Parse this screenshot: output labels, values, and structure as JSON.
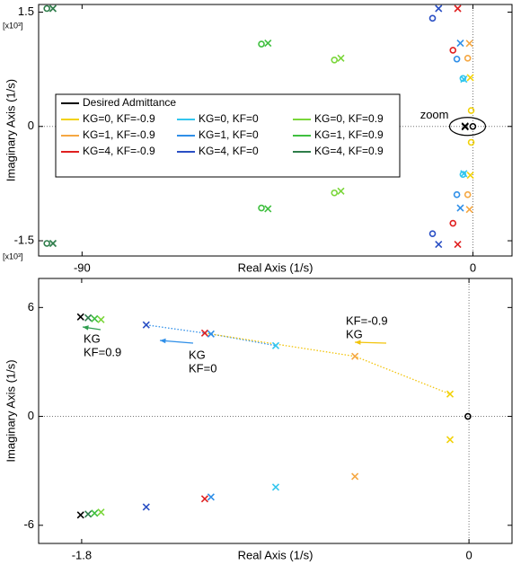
{
  "chart_data": [
    {
      "type": "scatter",
      "x_label": "Real Axis (1/s)",
      "y_label": "Imaginary Axis (1/s)",
      "y_exponent": "[x10³]",
      "annotation": "zoom",
      "xlim": [
        -100,
        9
      ],
      "ylim": [
        -1700,
        1600
      ],
      "xticks": [
        -90,
        0
      ],
      "yticks": [
        {
          "value": -1500,
          "label": "-1.5"
        },
        0,
        {
          "value": 1500,
          "label": "1.5"
        }
      ],
      "zero_lines": true,
      "legend": "upper left",
      "series": [
        {
          "name": "Desired Admittance",
          "color": "#000000",
          "x": [
            -1.8,
            -1.8
          ],
          "values": [
            5.5,
            -5.5
          ],
          "zeros_x": [
            -0.02
          ],
          "zeros_y": [
            0
          ]
        },
        {
          "name": "KG=0, KF=-0.9",
          "color": "#f2d20a",
          "x": [
            -0.6,
            -0.6
          ],
          "values": [
            640,
            -640
          ],
          "zeros_x": [
            -0.4,
            -0.4
          ],
          "zeros_y": [
            209,
            -209
          ]
        },
        {
          "name": "KG=1, KF=-0.9",
          "color": "#f5a742",
          "x": [
            -0.8,
            -0.8
          ],
          "values": [
            1090,
            -1090
          ],
          "zeros_x": [
            -1.2,
            -1.2
          ],
          "zeros_y": [
            895,
            -895
          ]
        },
        {
          "name": "KG=4, KF=-0.9",
          "color": "#e02020",
          "x": [
            -3.5,
            -3.5
          ],
          "values": [
            1547,
            -1547
          ],
          "zeros_x": [
            -4.6,
            -4.6
          ],
          "zeros_y": [
            1000,
            -1270
          ]
        },
        {
          "name": "KG=0, KF=0",
          "color": "#33c6ee",
          "x": [
            -2.1,
            -2.1
          ],
          "values": [
            620,
            -620
          ],
          "zeros_x": [
            -2.3,
            -2.3
          ],
          "zeros_y": [
            630,
            -630
          ]
        },
        {
          "name": "KG=1, KF=0",
          "color": "#2f8fe8",
          "x": [
            -2.9,
            -2.9
          ],
          "values": [
            1093,
            -1070
          ],
          "zeros_x": [
            -3.7,
            -3.7
          ],
          "zeros_y": [
            884,
            -895
          ]
        },
        {
          "name": "KG=4, KF=0",
          "color": "#2a4fc4",
          "x": [
            -7.9,
            -7.9
          ],
          "values": [
            1547,
            -1547
          ],
          "zeros_x": [
            -9.3,
            -9.3
          ],
          "zeros_y": [
            1419,
            -1407
          ]
        },
        {
          "name": "KG=0, KF=0.9",
          "color": "#7ad63a",
          "x": [
            -30.4,
            -30.4
          ],
          "values": [
            895,
            -849
          ],
          "zeros_x": [
            -31.9,
            -31.9
          ],
          "zeros_y": [
            872,
            -872
          ]
        },
        {
          "name": "KG=1, KF=0.9",
          "color": "#3fbf3f",
          "x": [
            -47.2,
            -47.2
          ],
          "values": [
            1093,
            -1081
          ],
          "zeros_x": [
            -48.7,
            -48.7
          ],
          "zeros_y": [
            1081,
            -1070
          ]
        },
        {
          "name": "KG=4, KF=0.9",
          "color": "#2e7d4a",
          "x": [
            -96.7,
            -96.7
          ],
          "values": [
            1547,
            -1535
          ],
          "zeros_x": [
            -98.1,
            -98.1
          ],
          "zeros_y": [
            1547,
            -1535
          ]
        }
      ]
    },
    {
      "type": "scatter",
      "x_label": "Real Axis (1/s)",
      "y_label": "Imaginary Axis (1/s)",
      "xlim": [
        -2,
        0.2
      ],
      "ylim": [
        -7,
        7.6
      ],
      "xticks": [
        -1.8,
        0
      ],
      "yticks": [
        -6,
        0,
        6
      ],
      "zero_lines": true,
      "annotations": [
        {
          "lines": [
            "KF=-0.9",
            "KG"
          ],
          "color": "#f2c40a"
        },
        {
          "lines": [
            "KG",
            "KF=0"
          ],
          "color": "#2f8fe8"
        },
        {
          "lines": [
            "KG",
            "KF=0.9"
          ],
          "color": "#2e9e4f"
        }
      ],
      "series": [
        {
          "color": "#000000",
          "x": [
            -1.805,
            -1.805
          ],
          "values": [
            5.48,
            -5.43
          ],
          "zeros_x": [
            -0.005
          ],
          "zeros_y": [
            0
          ]
        },
        {
          "color": "#f2d20a",
          "x": [
            -0.088,
            -0.088
          ],
          "values": [
            1.23,
            -1.28
          ]
        },
        {
          "color": "#f5a742",
          "x": [
            -0.53,
            -0.53
          ],
          "values": [
            3.31,
            -3.31
          ]
        },
        {
          "color": "#e02020",
          "x": [
            -1.228,
            -1.228
          ],
          "values": [
            4.59,
            -4.54
          ]
        },
        {
          "color": "#33c6ee",
          "x": [
            -0.898,
            -0.898
          ],
          "values": [
            3.9,
            -3.9
          ]
        },
        {
          "color": "#2f8fe8",
          "x": [
            -1.199,
            -1.199
          ],
          "values": [
            4.54,
            -4.44
          ]
        },
        {
          "color": "#2a4fc4",
          "x": [
            -1.5,
            -1.5
          ],
          "values": [
            5.04,
            -4.99
          ]
        },
        {
          "color": "#7ad63a",
          "x": [
            -1.71,
            -1.71
          ],
          "values": [
            5.33,
            -5.28
          ]
        },
        {
          "color": "#3fbf3f",
          "x": [
            -1.74,
            -1.74
          ],
          "values": [
            5.38,
            -5.33
          ]
        },
        {
          "color": "#2e7d4a",
          "x": [
            -1.77,
            -1.77
          ],
          "values": [
            5.43,
            -5.38
          ]
        }
      ]
    }
  ]
}
